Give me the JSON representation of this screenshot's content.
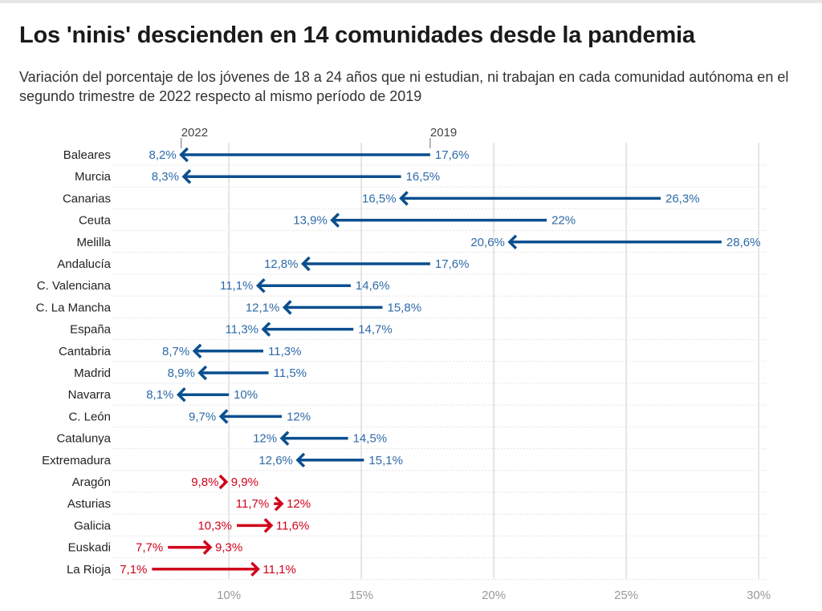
{
  "title": "Los 'ninis' descienden en 14 comunidades desde la pandemia",
  "subtitle": "Variación del porcentaje de los jóvenes de 18 a 24 años que ni estudian, ni trabajan en cada comunidad autónoma en el segundo trimestre de 2022 respecto al mismo período de 2019",
  "colors": {
    "decrease": "#0a4f8f",
    "decrease_label": "#2e6aa8",
    "increase": "#d0021b",
    "grid": "#dddddd",
    "tick": "#999999"
  },
  "chart_data": {
    "type": "arrow",
    "legend": {
      "from_label": "2019",
      "to_label": "2022"
    },
    "xlim": [
      5.3,
      30.3
    ],
    "xticks": [
      10,
      15,
      20,
      25,
      30
    ],
    "xtick_labels": [
      "10%",
      "15%",
      "20%",
      "25%",
      "30%"
    ],
    "rows": [
      {
        "name": "Baleares",
        "v2019": 17.6,
        "v2022": 8.2,
        "label2019": "17,6%",
        "label2022": "8,2%"
      },
      {
        "name": "Murcia",
        "v2019": 16.5,
        "v2022": 8.3,
        "label2019": "16,5%",
        "label2022": "8,3%"
      },
      {
        "name": "Canarias",
        "v2019": 26.3,
        "v2022": 16.5,
        "label2019": "26,3%",
        "label2022": "16,5%"
      },
      {
        "name": "Ceuta",
        "v2019": 22,
        "v2022": 13.9,
        "label2019": "22%",
        "label2022": "13,9%"
      },
      {
        "name": "Melilla",
        "v2019": 28.6,
        "v2022": 20.6,
        "label2019": "28,6%",
        "label2022": "20,6%"
      },
      {
        "name": "Andalucía",
        "v2019": 17.6,
        "v2022": 12.8,
        "label2019": "17,6%",
        "label2022": "12,8%"
      },
      {
        "name": "C. Valenciana",
        "v2019": 14.6,
        "v2022": 11.1,
        "label2019": "14,6%",
        "label2022": "11,1%"
      },
      {
        "name": "C. La Mancha",
        "v2019": 15.8,
        "v2022": 12.1,
        "label2019": "15,8%",
        "label2022": "12,1%"
      },
      {
        "name": "España",
        "v2019": 14.7,
        "v2022": 11.3,
        "label2019": "14,7%",
        "label2022": "11,3%"
      },
      {
        "name": "Cantabria",
        "v2019": 11.3,
        "v2022": 8.7,
        "label2019": "11,3%",
        "label2022": "8,7%"
      },
      {
        "name": "Madrid",
        "v2019": 11.5,
        "v2022": 8.9,
        "label2019": "11,5%",
        "label2022": "8,9%"
      },
      {
        "name": "Navarra",
        "v2019": 10,
        "v2022": 8.1,
        "label2019": "10%",
        "label2022": "8,1%"
      },
      {
        "name": "C. León",
        "v2019": 12,
        "v2022": 9.7,
        "label2019": "12%",
        "label2022": "9,7%"
      },
      {
        "name": "Catalunya",
        "v2019": 14.5,
        "v2022": 12,
        "label2019": "14,5%",
        "label2022": "12%"
      },
      {
        "name": "Extremadura",
        "v2019": 15.1,
        "v2022": 12.6,
        "label2019": "15,1%",
        "label2022": "12,6%"
      },
      {
        "name": "Aragón",
        "v2019": 9.8,
        "v2022": 9.9,
        "label2019": "9,8%",
        "label2022": "9,9%"
      },
      {
        "name": "Asturias",
        "v2019": 11.7,
        "v2022": 12,
        "label2019": "11,7%",
        "label2022": "12%"
      },
      {
        "name": "Galicia",
        "v2019": 10.3,
        "v2022": 11.6,
        "label2019": "10,3%",
        "label2022": "11,6%"
      },
      {
        "name": "Euskadi",
        "v2019": 7.7,
        "v2022": 9.3,
        "label2019": "7,7%",
        "label2022": "9,3%"
      },
      {
        "name": "La Rioja",
        "v2019": 7.1,
        "v2022": 11.1,
        "label2019": "7,1%",
        "label2022": "11,1%"
      }
    ]
  }
}
